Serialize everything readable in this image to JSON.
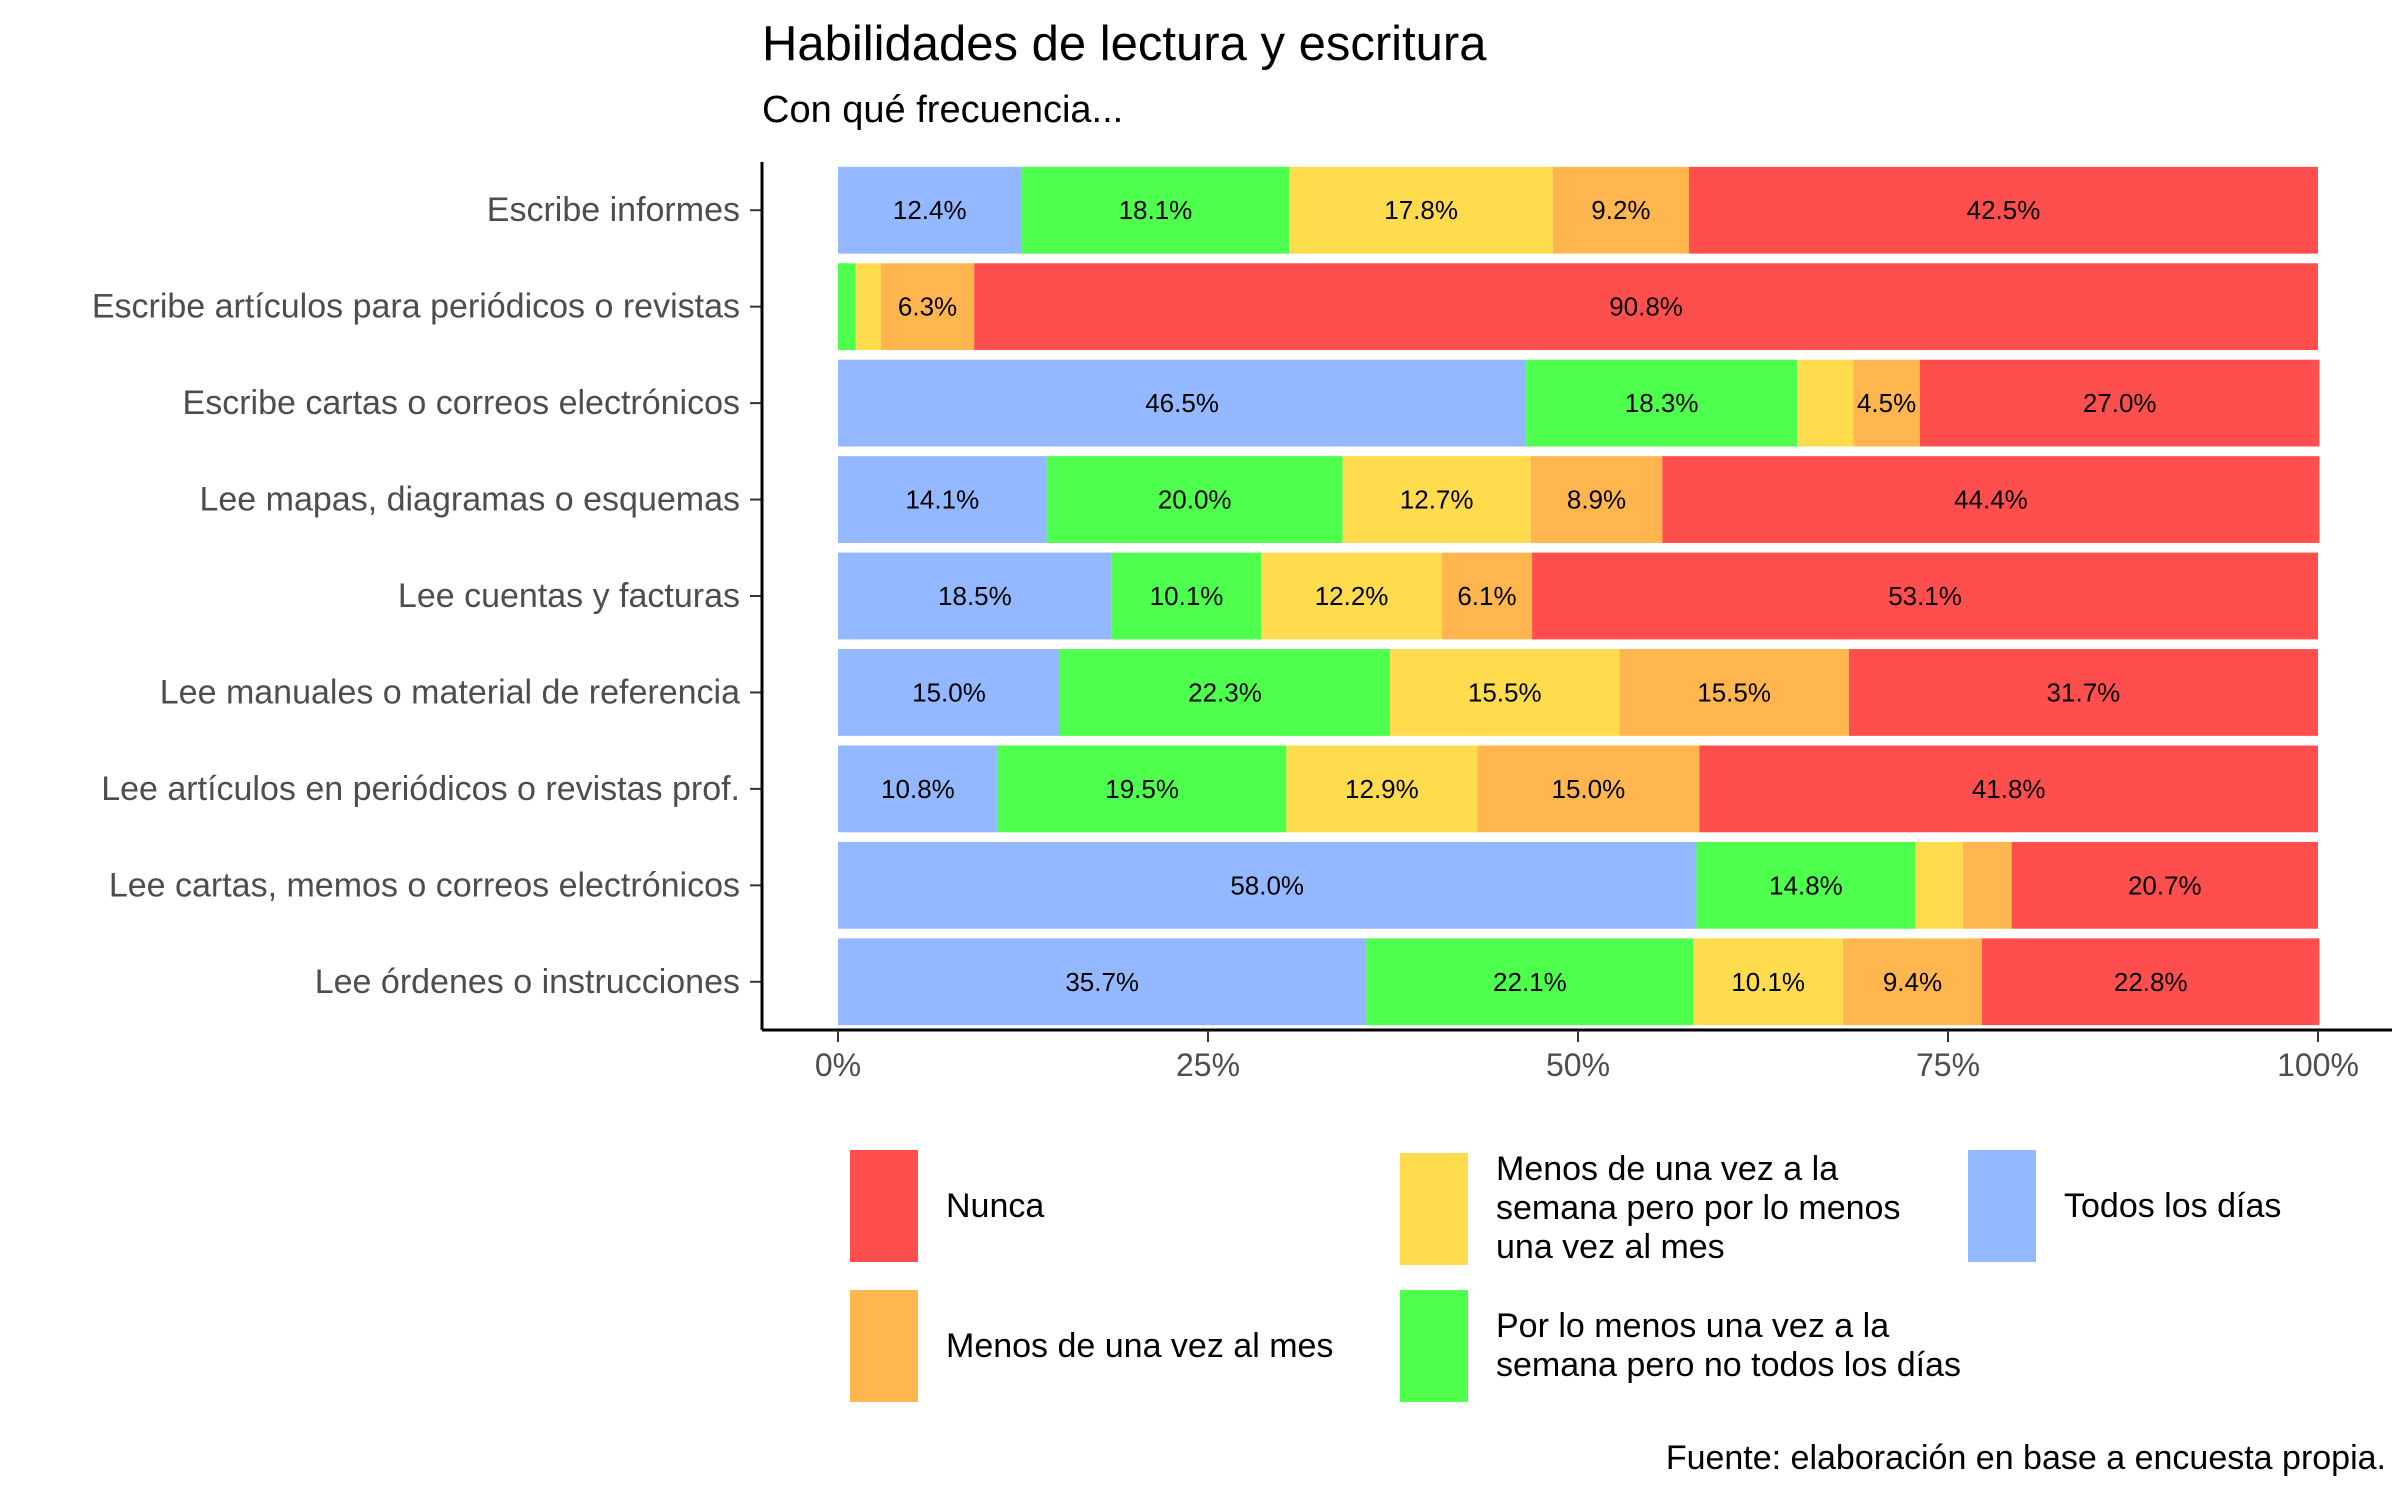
{
  "chart_data": {
    "type": "bar",
    "orientation": "horizontal",
    "stacked": "percent",
    "title": "Habilidades de lectura y escritura",
    "subtitle": "Con qué frecuencia...",
    "caption": "Fuente: elaboración en base a encuesta propia.",
    "xlim": [
      0,
      100
    ],
    "x_ticks": [
      "0%",
      "25%",
      "50%",
      "75%",
      "100%"
    ],
    "grid": false,
    "legend_position": "bottom",
    "categories": [
      "Escribe informes",
      "Escribe artículos para periódicos o revistas",
      "Escribe cartas o correos electrónicos",
      "Lee mapas, diagramas o esquemas",
      "Lee cuentas y facturas",
      "Lee manuales o material de referencia",
      "Lee artículos en periódicos o revistas prof.",
      "Lee cartas, memos o correos electrónicos",
      "Lee órdenes o instrucciones"
    ],
    "series": [
      {
        "name": "Todos los días",
        "color": "#94B8FF",
        "values": [
          12.4,
          0.0,
          46.5,
          14.1,
          18.5,
          15.0,
          10.8,
          58.0,
          35.7
        ],
        "labels": [
          "12.4%",
          "",
          "46.5%",
          "14.1%",
          "18.5%",
          "15.0%",
          "10.8%",
          "58.0%",
          "35.7%"
        ]
      },
      {
        "name": "Por lo menos una vez a la semana pero no todos los días",
        "color": "#4EFF4E",
        "values": [
          18.1,
          1.2,
          18.3,
          20.0,
          10.1,
          22.3,
          19.5,
          14.8,
          22.1
        ],
        "labels": [
          "18.1%",
          "",
          "18.3%",
          "20.0%",
          "10.1%",
          "22.3%",
          "19.5%",
          "14.8%",
          "22.1%"
        ]
      },
      {
        "name": "Menos de una vez a la semana pero por lo menos una vez al mes",
        "color": "#FFDB4E",
        "values": [
          17.8,
          1.7,
          3.8,
          12.7,
          12.2,
          15.5,
          12.9,
          3.2,
          10.1
        ],
        "labels": [
          "17.8%",
          "",
          "",
          "12.7%",
          "12.2%",
          "15.5%",
          "12.9%",
          "",
          "10.1%"
        ]
      },
      {
        "name": "Menos de una vez al mes",
        "color": "#FFB64E",
        "values": [
          9.2,
          6.3,
          4.5,
          8.9,
          6.1,
          15.5,
          15.0,
          3.3,
          9.4
        ],
        "labels": [
          "9.2%",
          "6.3%",
          "4.5%",
          "8.9%",
          "6.1%",
          "15.5%",
          "15.0%",
          "",
          "9.4%"
        ]
      },
      {
        "name": "Nunca",
        "color": "#FF4E4E",
        "values": [
          42.5,
          90.8,
          27.0,
          44.4,
          53.1,
          31.7,
          41.8,
          20.7,
          22.8
        ],
        "labels": [
          "42.5%",
          "90.8%",
          "27.0%",
          "44.4%",
          "53.1%",
          "31.7%",
          "41.8%",
          "20.7%",
          "22.8%"
        ]
      }
    ],
    "legend": [
      {
        "label": "Nunca",
        "color": "#FF4E4E"
      },
      {
        "label": "Menos de una vez al mes",
        "color": "#FFB64E"
      },
      {
        "label": "Menos de una vez a la semana pero por lo menos una vez al mes",
        "color": "#FFDB4E"
      },
      {
        "label": "Por lo menos una vez a la semana pero no todos los días",
        "color": "#4EFF4E"
      },
      {
        "label": "Todos los días",
        "color": "#94B8FF"
      }
    ]
  }
}
